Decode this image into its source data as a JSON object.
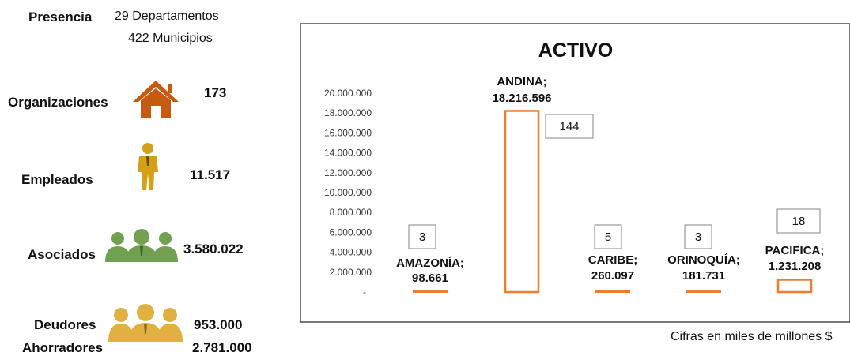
{
  "presence": {
    "label": "Presencia",
    "departments": "29 Departamentos",
    "municipalities": "422 Municipios"
  },
  "stats": [
    {
      "label": "Organizaciones",
      "value": "173",
      "icon": "house-icon",
      "color": "#c55a11"
    },
    {
      "label": "Empleados",
      "value": "11.517",
      "icon": "employee-icon",
      "color": "#d4a017"
    },
    {
      "label": "Asociados",
      "value": "3.580.022",
      "icon": "group-icon",
      "color": "#70a050"
    },
    {
      "label": "Deudores",
      "value": "953.000",
      "icon": "group-icon",
      "color": "#e0b040"
    },
    {
      "label": "Ahorradores",
      "value": "2.781.000"
    }
  ],
  "chart_data": {
    "type": "bar",
    "title": "ACTIVO",
    "categories": [
      "AMAZONÍA",
      "ANDINA",
      "CARIBE",
      "ORINOQUÍA",
      "PACIFICA"
    ],
    "values": [
      98661,
      18216596,
      260097,
      181731,
      1231208
    ],
    "value_labels": [
      "98.661",
      "18.216.596",
      "260.097",
      "181.731",
      "1.231.208"
    ],
    "counts": [
      "3",
      "144",
      "5",
      "3",
      "18"
    ],
    "ylim": [
      0,
      20000000
    ],
    "yticks": [
      "-",
      "2.000.000",
      "4.000.000",
      "6.000.000",
      "8.000.000",
      "10.000.000",
      "12.000.000",
      "14.000.000",
      "16.000.000",
      "18.000.000",
      "20.000.000"
    ],
    "bar_color": "#ed7d31",
    "footnote": "Cifras en miles de millones $"
  }
}
